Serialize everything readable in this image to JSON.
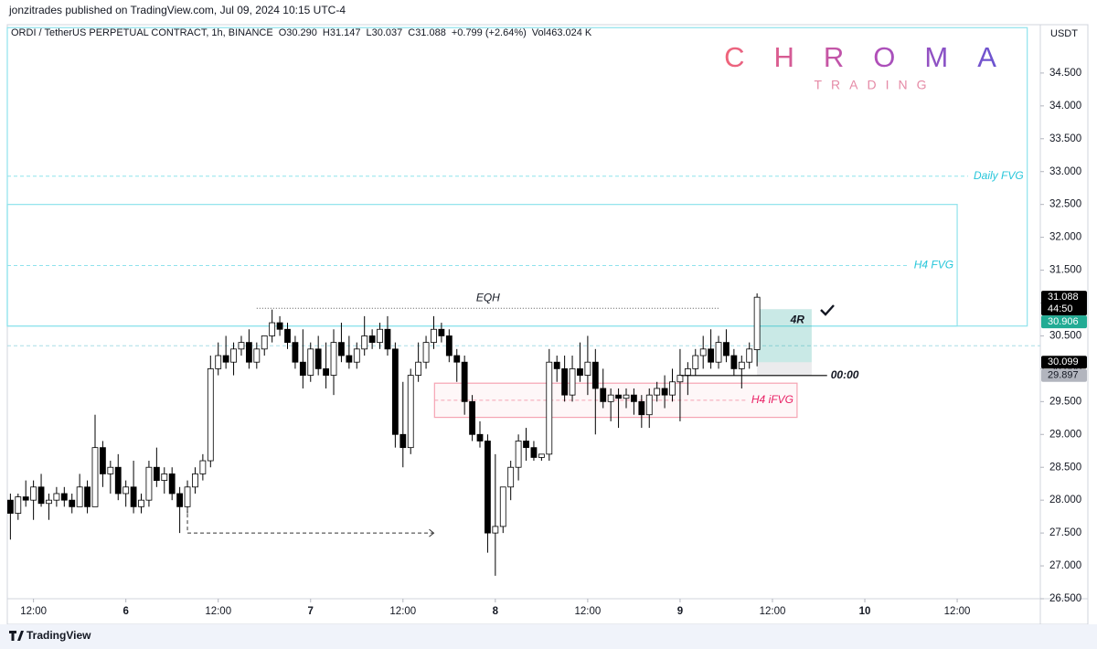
{
  "chart_data": {
    "type": "candlestick",
    "publisher": "jonzitrades published on TradingView.com, Jul 09, 2024 10:15 UTC-4",
    "symbol": "ORDI / TetherUS PERPETUAL CONTRACT, 1h, BINANCE",
    "legend_values": [
      "O30.290",
      "H31.147",
      "L30.037",
      "C31.088",
      "+0.799 (+2.64%)",
      "Vol463.024 K"
    ],
    "currency": "USDT",
    "logo": {
      "title": "CHROMA",
      "subtitle": "TRADING"
    },
    "brand": "TradingView",
    "timer": "44:50",
    "x": [
      -3,
      -2,
      -1,
      0,
      1,
      2,
      3,
      4,
      5,
      6,
      7,
      8,
      9,
      10,
      11,
      12,
      13,
      14,
      15,
      16,
      17,
      18,
      19,
      20,
      21,
      22,
      23,
      24,
      25,
      26,
      27,
      28,
      29,
      30,
      31,
      32,
      33,
      34,
      35,
      36,
      37,
      38,
      39,
      40,
      41,
      42,
      43,
      44,
      45,
      46,
      47,
      48,
      49,
      50,
      51,
      52,
      53,
      54,
      55,
      56,
      57,
      58,
      59,
      60,
      61,
      62,
      63,
      64,
      65,
      66,
      67,
      68,
      69,
      70,
      71,
      72,
      73,
      74,
      75,
      76,
      77,
      78,
      79,
      80,
      81,
      82,
      83,
      84,
      85,
      86,
      87,
      88,
      89,
      90,
      91,
      92,
      93,
      94
    ],
    "open": [
      28.0,
      27.8,
      28.05,
      28.0,
      28.2,
      27.95,
      28.0,
      28.1,
      28.0,
      27.9,
      28.2,
      27.9,
      28.8,
      28.4,
      28.5,
      28.1,
      28.2,
      27.9,
      28.0,
      28.5,
      28.3,
      28.4,
      28.1,
      27.9,
      28.2,
      28.4,
      28.6,
      30.0,
      30.2,
      30.1,
      30.3,
      30.4,
      30.1,
      30.3,
      30.5,
      30.7,
      30.6,
      30.4,
      30.1,
      29.9,
      30.3,
      30.0,
      29.9,
      30.4,
      30.2,
      30.1,
      30.3,
      30.5,
      30.4,
      30.6,
      30.3,
      29.0,
      28.8,
      29.9,
      30.1,
      30.4,
      30.6,
      30.5,
      30.2,
      30.1,
      29.5,
      29.0,
      28.9,
      27.5,
      27.6,
      28.2,
      28.5,
      28.9,
      28.8,
      28.65,
      28.7,
      30.1,
      30.0,
      29.6,
      30.0,
      29.9,
      30.1,
      29.7,
      29.5,
      29.6,
      29.55,
      29.6,
      29.5,
      29.3,
      29.6,
      29.7,
      29.6,
      29.8,
      29.9,
      30.0,
      30.2,
      30.3,
      30.1,
      30.4,
      30.2,
      30.0,
      30.1,
      30.29
    ],
    "high": [
      28.1,
      28.1,
      28.3,
      28.3,
      28.4,
      28.1,
      28.2,
      28.2,
      28.1,
      28.4,
      28.3,
      29.3,
      28.9,
      28.6,
      28.7,
      28.3,
      28.6,
      28.1,
      28.6,
      28.8,
      28.5,
      28.5,
      28.2,
      28.3,
      28.5,
      28.7,
      30.2,
      30.4,
      30.5,
      30.4,
      30.5,
      30.6,
      30.4,
      30.5,
      30.9,
      30.8,
      30.7,
      30.5,
      30.6,
      30.4,
      30.5,
      30.4,
      30.6,
      30.7,
      30.5,
      30.4,
      30.8,
      30.6,
      30.7,
      30.8,
      30.4,
      29.8,
      30.0,
      30.4,
      30.5,
      30.8,
      30.7,
      30.6,
      30.3,
      30.2,
      29.6,
      29.2,
      29.0,
      28.7,
      28.2,
      28.6,
      29.0,
      29.1,
      28.9,
      28.7,
      30.3,
      30.2,
      30.2,
      30.2,
      30.4,
      30.5,
      30.3,
      30.0,
      29.7,
      29.7,
      29.7,
      29.7,
      29.6,
      29.7,
      29.8,
      29.9,
      30.0,
      30.3,
      30.1,
      30.3,
      30.5,
      30.6,
      30.5,
      30.6,
      30.3,
      30.2,
      30.4,
      31.147
    ],
    "low": [
      27.4,
      27.7,
      27.9,
      27.7,
      27.9,
      27.7,
      27.9,
      27.9,
      27.8,
      27.9,
      27.8,
      27.9,
      28.2,
      28.1,
      28.0,
      27.9,
      27.8,
      27.8,
      27.9,
      28.2,
      28.1,
      28.0,
      27.5,
      27.8,
      28.1,
      28.3,
      28.5,
      29.9,
      30.0,
      29.9,
      30.2,
      30.0,
      30.0,
      30.2,
      30.4,
      30.5,
      30.3,
      30.0,
      29.7,
      29.8,
      29.9,
      29.7,
      29.6,
      30.1,
      30.0,
      30.0,
      30.2,
      30.3,
      30.3,
      30.2,
      28.8,
      28.5,
      28.7,
      29.8,
      30.0,
      30.3,
      30.4,
      30.1,
      29.8,
      29.3,
      28.9,
      28.8,
      27.2,
      26.85,
      27.5,
      28.0,
      28.3,
      28.6,
      28.6,
      28.6,
      28.6,
      29.8,
      29.5,
      29.5,
      29.8,
      29.6,
      29.0,
      29.4,
      29.2,
      29.1,
      29.4,
      29.3,
      29.1,
      29.1,
      29.5,
      29.4,
      29.5,
      29.2,
      29.6,
      29.9,
      30.0,
      30.0,
      30.0,
      30.1,
      29.9,
      29.7,
      30.0,
      30.037
    ],
    "close": [
      27.8,
      28.05,
      28.0,
      28.2,
      27.95,
      28.0,
      28.1,
      28.0,
      27.9,
      28.2,
      27.9,
      28.8,
      28.4,
      28.5,
      28.1,
      28.2,
      27.9,
      28.0,
      28.5,
      28.3,
      28.4,
      28.1,
      27.9,
      28.2,
      28.4,
      28.6,
      30.0,
      30.2,
      30.1,
      30.3,
      30.4,
      30.1,
      30.3,
      30.5,
      30.7,
      30.6,
      30.4,
      30.1,
      29.9,
      30.3,
      30.0,
      29.9,
      30.4,
      30.2,
      30.1,
      30.3,
      30.5,
      30.4,
      30.6,
      30.3,
      29.0,
      28.8,
      29.9,
      30.1,
      30.4,
      30.6,
      30.5,
      30.2,
      30.1,
      29.5,
      29.0,
      28.9,
      27.5,
      27.6,
      28.2,
      28.5,
      28.9,
      28.8,
      28.65,
      28.7,
      30.1,
      30.0,
      29.6,
      30.0,
      29.9,
      30.1,
      29.7,
      29.5,
      29.6,
      29.55,
      29.6,
      29.5,
      29.3,
      29.6,
      29.7,
      29.6,
      29.8,
      29.9,
      30.0,
      30.2,
      30.3,
      30.1,
      30.4,
      30.2,
      30.0,
      30.1,
      30.3,
      31.088
    ],
    "up_color": "#ffffff",
    "down_color": "#000000",
    "xlim": [
      -3.4,
      130.8
    ],
    "xticks": [
      {
        "value": 0,
        "label": "12:00"
      },
      {
        "value": 12,
        "label": "6"
      },
      {
        "value": 24,
        "label": "12:00"
      },
      {
        "value": 36,
        "label": "7"
      },
      {
        "value": 48,
        "label": "12:00"
      },
      {
        "value": 60,
        "label": "8"
      },
      {
        "value": 72,
        "label": "12:00"
      },
      {
        "value": 84,
        "label": "9"
      },
      {
        "value": 96,
        "label": "12:00"
      },
      {
        "value": 108,
        "label": "10"
      },
      {
        "value": 120,
        "label": "12:00"
      }
    ],
    "ylim": [
      26.5,
      35.194
    ],
    "yticks": [
      {
        "value": 26.5,
        "label": "26.500"
      },
      {
        "value": 27,
        "label": "27.000"
      },
      {
        "value": 27.5,
        "label": "27.500"
      },
      {
        "value": 28,
        "label": "28.000"
      },
      {
        "value": 28.5,
        "label": "28.500"
      },
      {
        "value": 29,
        "label": "29.000"
      },
      {
        "value": 29.5,
        "label": "29.500"
      },
      {
        "value": 30,
        "label": "30.000"
      },
      {
        "value": 30.5,
        "label": "30.500"
      },
      {
        "value": 31,
        "label": "31.000"
      },
      {
        "value": 31.5,
        "label": "31.500"
      },
      {
        "value": 32,
        "label": "32.000"
      },
      {
        "value": 32.5,
        "label": "32.500"
      },
      {
        "value": 33,
        "label": "33.000"
      },
      {
        "value": 33.5,
        "label": "33.500"
      },
      {
        "value": 34,
        "label": "34.000"
      },
      {
        "value": 34.5,
        "label": "34.500"
      }
    ],
    "grid": false,
    "zones": [
      {
        "label": "Daily FVG",
        "ylim": [
          30.65,
          35.19
        ],
        "xlim": [
          -3.4,
          129.1
        ],
        "line": 32.93,
        "color": "#26c6da"
      },
      {
        "label": "H4 FVG",
        "ylim": [
          30.65,
          32.5
        ],
        "xlim": [
          -3.4,
          120
        ],
        "line": 31.57,
        "color": "#26c6da"
      },
      {
        "label": "H4 iFVG",
        "ylim": [
          29.26,
          29.78
        ],
        "xlim": [
          52.1,
          99.2
        ],
        "line": 29.52,
        "color": "#e91e63"
      }
    ],
    "level": 30.35,
    "eqh": {
      "label": "EQH",
      "price": 30.92,
      "xlim": [
        29,
        89.1
      ]
    },
    "arrow": {
      "price": 27.5,
      "xlim": [
        20,
        52
      ]
    },
    "position": {
      "label": "4R",
      "target": 30.906,
      "entry": 30.099,
      "stop": 29.897,
      "xlim": [
        94,
        101.1
      ]
    },
    "session_open": {
      "label": "00:00",
      "price": 29.897,
      "xlim": [
        84.1,
        103.1
      ]
    }
  }
}
